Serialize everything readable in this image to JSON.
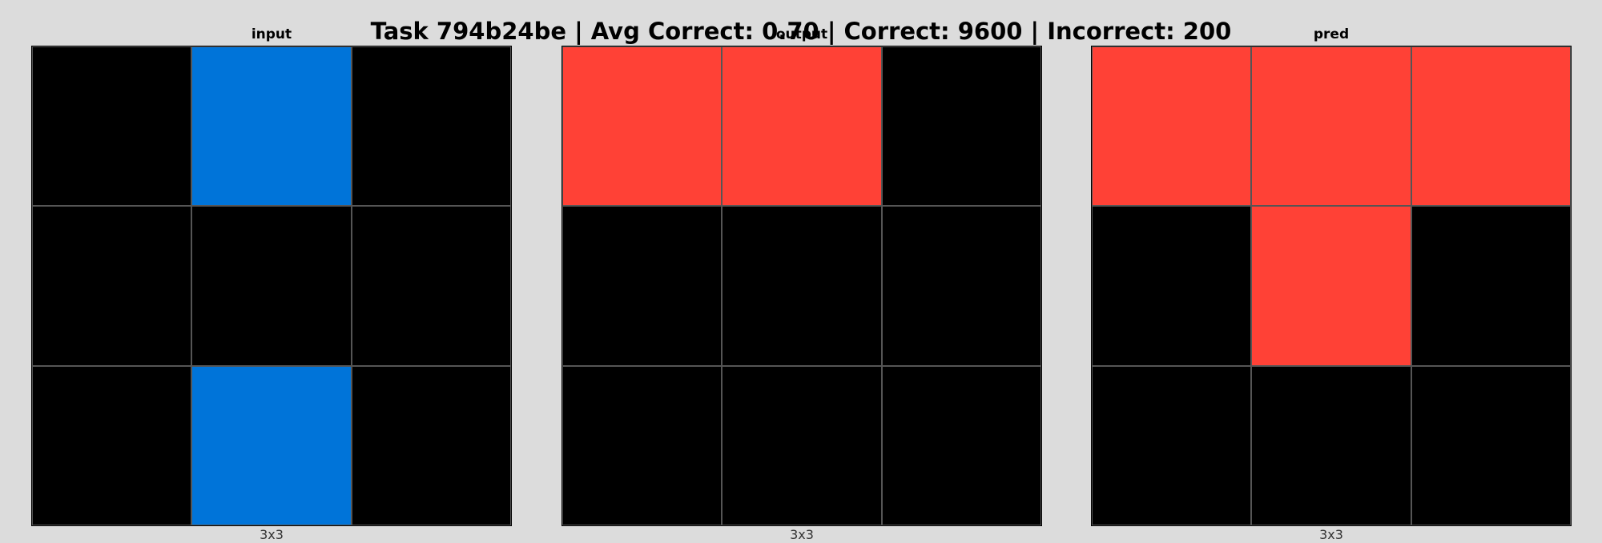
{
  "title": "Task 794b24be | Avg Correct: 0.70 | Correct: 9600 | Incorrect: 200",
  "palette": {
    "0": "#000000",
    "1": "#0074d9",
    "2": "#ff4136"
  },
  "panels": [
    {
      "label": "input",
      "size_label": "3x3",
      "grid": [
        [
          0,
          1,
          0
        ],
        [
          0,
          0,
          0
        ],
        [
          0,
          1,
          0
        ]
      ]
    },
    {
      "label": "output",
      "size_label": "3x3",
      "grid": [
        [
          2,
          2,
          0
        ],
        [
          0,
          0,
          0
        ],
        [
          0,
          0,
          0
        ]
      ]
    },
    {
      "label": "pred",
      "size_label": "3x3",
      "grid": [
        [
          2,
          2,
          2
        ],
        [
          0,
          2,
          0
        ],
        [
          0,
          0,
          0
        ]
      ]
    }
  ]
}
